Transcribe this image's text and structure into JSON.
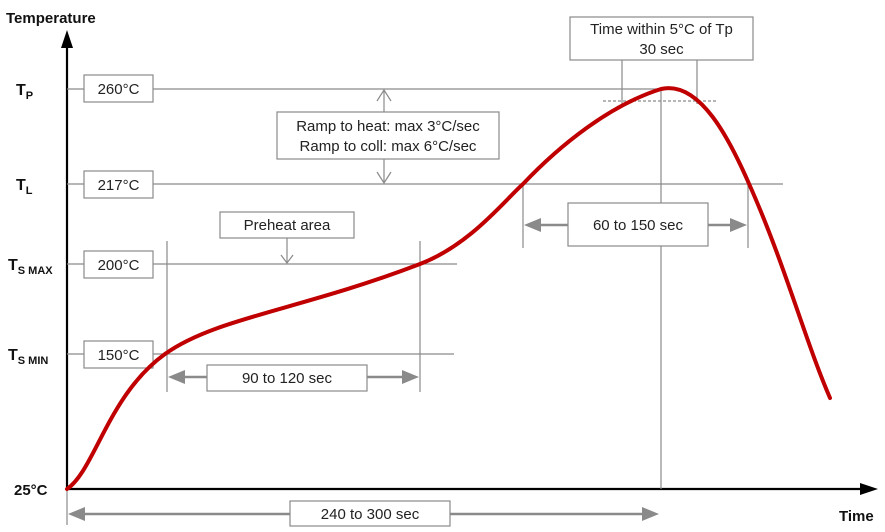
{
  "axes": {
    "y_label": "Temperature",
    "x_label": "Time",
    "origin_label": "25°C"
  },
  "levels": [
    {
      "id": "tp",
      "symbol": "T",
      "subscript": "P",
      "value": "260°C"
    },
    {
      "id": "tl",
      "symbol": "T",
      "subscript": "L",
      "value": "217°C"
    },
    {
      "id": "tsmax",
      "symbol": "T",
      "subscript": "S MAX",
      "value": "200°C"
    },
    {
      "id": "tsmin",
      "symbol": "T",
      "subscript": "S MIN",
      "value": "150°C"
    }
  ],
  "annotations": {
    "peak_window": [
      "Time within 5°C of Tp",
      "30 sec"
    ],
    "ramp": [
      "Ramp to heat: max 3°C/sec",
      "Ramp to coll: max 6°C/sec"
    ],
    "preheat": "Preheat area",
    "liquidus_duration": "60 to 150 sec",
    "preheat_duration": "90 to 120 sec",
    "total_duration": "240 to 300 sec"
  },
  "colors": {
    "profile_curve": "#c00000",
    "guide_lines": "#8a8a8a",
    "axes": "#000000"
  }
}
